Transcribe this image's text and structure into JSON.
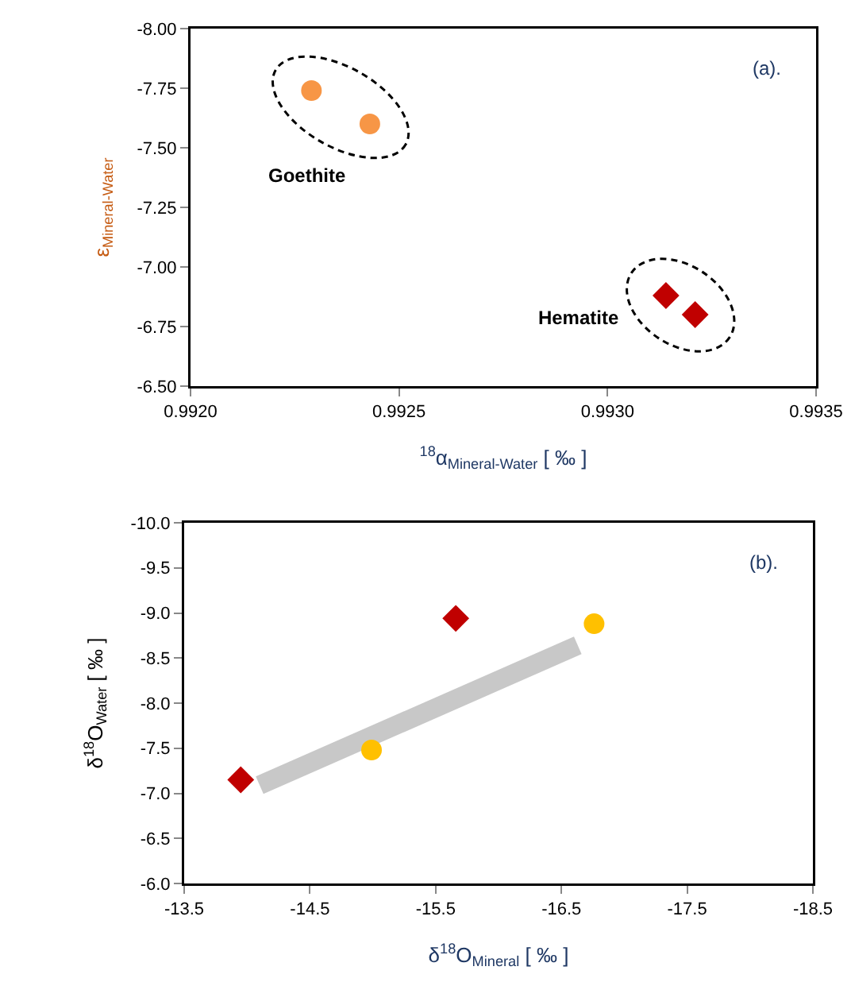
{
  "chart_data": [
    {
      "type": "scatter",
      "xlabel": "$^{18}$α$_{Mineral-Water}$ [ ‰ ]",
      "ylabel": "ε$_{Mineral-Water}$",
      "annotations": [
        "(a).",
        "Goethite",
        "Hematite"
      ],
      "xlim": [
        0.992,
        0.9935
      ],
      "xticks": [
        {
          "value": 0.992,
          "label": "0.9920"
        },
        {
          "value": 0.9925,
          "label": "0.9925"
        },
        {
          "value": 0.993,
          "label": "0.9930"
        },
        {
          "value": 0.9935,
          "label": "0.9935"
        }
      ],
      "ylim": [
        -6.5,
        -8
      ],
      "yticks": [
        {
          "value": -8,
          "label": "-8.00"
        },
        {
          "value": -7.75,
          "label": "-7.75"
        },
        {
          "value": -7.5,
          "label": "-7.50"
        },
        {
          "value": -7.25,
          "label": "-7.25"
        },
        {
          "value": -7,
          "label": "-7.00"
        },
        {
          "value": -6.75,
          "label": "-6.75"
        },
        {
          "value": -6.5,
          "label": "-6.50"
        }
      ],
      "grid": false,
      "series": [
        {
          "color": "#f79646",
          "marker": "circle",
          "x": [
            0.99229,
            0.99243
          ],
          "values": [
            -7.74,
            -7.6
          ]
        },
        {
          "color": "#c00000",
          "marker": "diamond",
          "x": [
            0.99314,
            0.99321
          ],
          "values": [
            -6.88,
            -6.8
          ]
        }
      ]
    },
    {
      "type": "scatter",
      "xlabel": "δ$^{18}$O$_{Mineral}$ [ ‰ ]",
      "ylabel": "δ$^{18}$O$_{Water}$ [ ‰ ]",
      "annotations": [
        "(b)."
      ],
      "xlim": [
        -13.5,
        -18.5
      ],
      "xticks": [
        -13.5,
        -14.5,
        -15.5,
        -16.5,
        -17.5,
        -18.5
      ],
      "ylim": [
        -6,
        -10
      ],
      "yticks": [
        {
          "value": -10,
          "label": "-10.0"
        },
        -9.5,
        {
          "value": -9,
          "label": "-9.0"
        },
        -8.5,
        {
          "value": -8,
          "label": "-8.0"
        },
        -7.5,
        {
          "value": -7,
          "label": "-7.0"
        },
        -6.5,
        {
          "value": -6,
          "label": "-6.0"
        }
      ],
      "grid": false,
      "series": [
        {
          "type": "line",
          "color": "#c8c8c8",
          "x": [
            -14.1,
            -16.63
          ],
          "values": [
            -7.09,
            -8.64
          ]
        },
        {
          "color": "#c00000",
          "marker": "diamond",
          "x": [
            -13.95,
            -15.66
          ],
          "values": [
            -7.15,
            -8.94
          ]
        },
        {
          "color": "#ffc000",
          "marker": "circle",
          "x": [
            -14.99,
            -16.76
          ],
          "values": [
            -7.48,
            -8.88
          ]
        }
      ]
    }
  ]
}
